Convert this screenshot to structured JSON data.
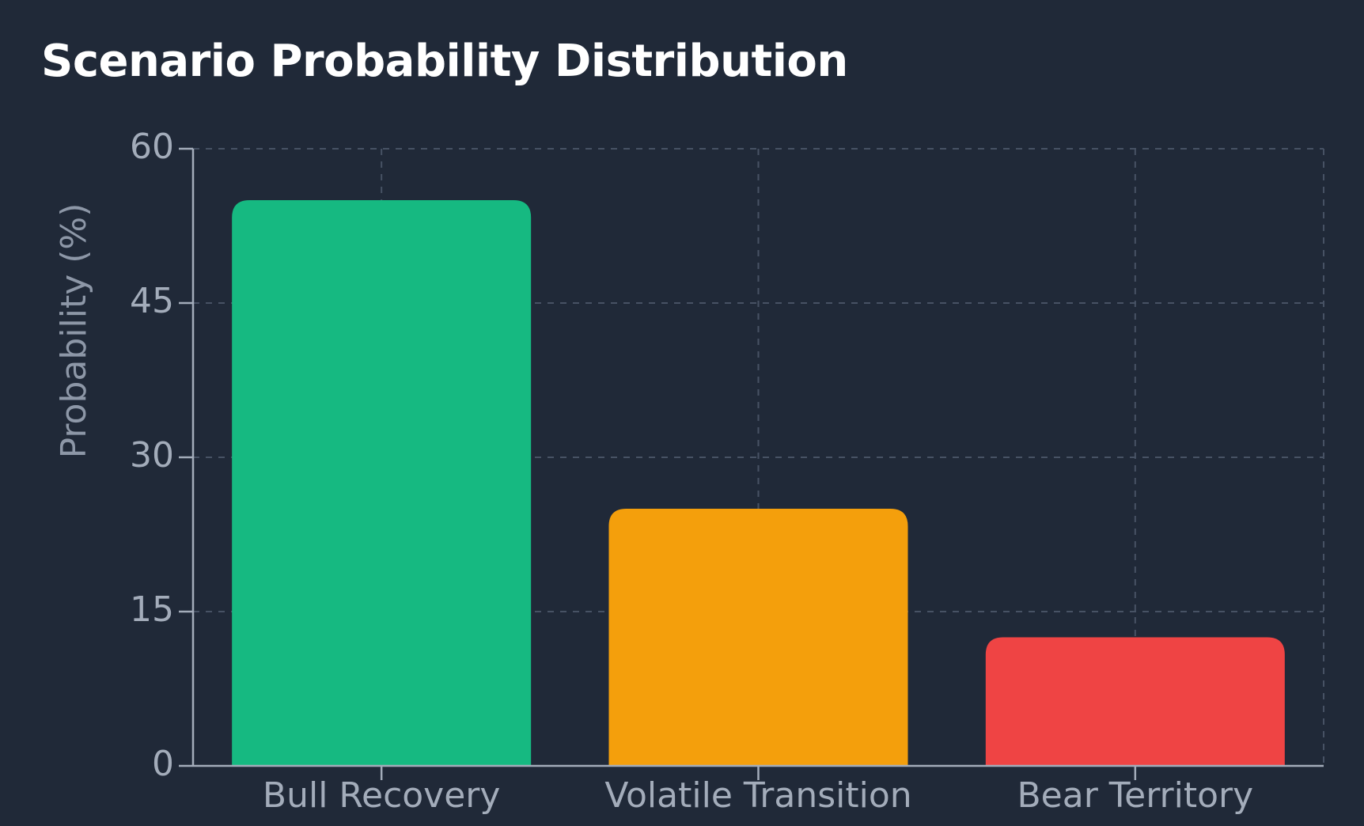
{
  "chart_data": {
    "type": "bar",
    "title": "Scenario Probability Distribution",
    "xlabel": "",
    "ylabel": "Probability (%)",
    "categories": [
      "Bull Recovery",
      "Volatile Transition",
      "Bear Territory"
    ],
    "values": [
      55,
      25,
      12.5
    ],
    "colors": [
      "#16b981",
      "#f49f0c",
      "#ef4444"
    ],
    "ylim": [
      0,
      60
    ],
    "yticks": [
      0,
      15,
      30,
      45,
      60
    ],
    "grid": true,
    "legend": "none"
  },
  "theme": {
    "background": "#202938",
    "grid": "#475264",
    "axis": "#a3acba",
    "title": "#ffffff"
  }
}
